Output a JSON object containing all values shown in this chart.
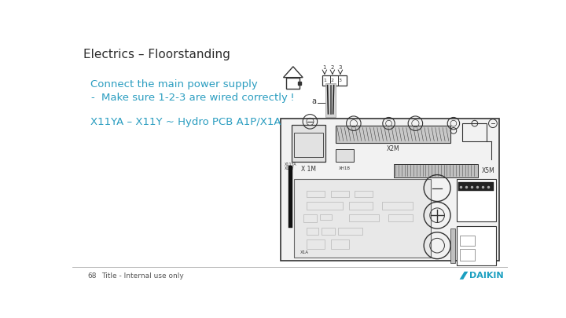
{
  "title": "Electrics – Floorstanding",
  "title_color": "#2d2d2d",
  "title_fontsize": 11,
  "line1": "Connect the main power supply",
  "line1_color": "#2a9dc0",
  "line1_fontsize": 9.5,
  "line2_dash": "-",
  "line2": "Make sure 1-2-3 are wired correctly ǃ",
  "line2_color": "#2a9dc0",
  "line2_fontsize": 9.5,
  "line3": "X11YA – X11Y ~ Hydro PCB A1P/X1A",
  "line3_color": "#2a9dc0",
  "line3_fontsize": 9.5,
  "footer_num": "68",
  "footer_text": "Title - Internal use only",
  "footer_color": "#555555",
  "footer_fontsize": 6.5,
  "bg_color": "#ffffff",
  "daikin_blue": "#1a9fc0",
  "separator_color": "#aaaaaa",
  "dark": "#333333",
  "mid": "#888888",
  "light": "#cccccc",
  "board_fill": "#f2f2f2",
  "sub_fill": "#e8e8e8"
}
